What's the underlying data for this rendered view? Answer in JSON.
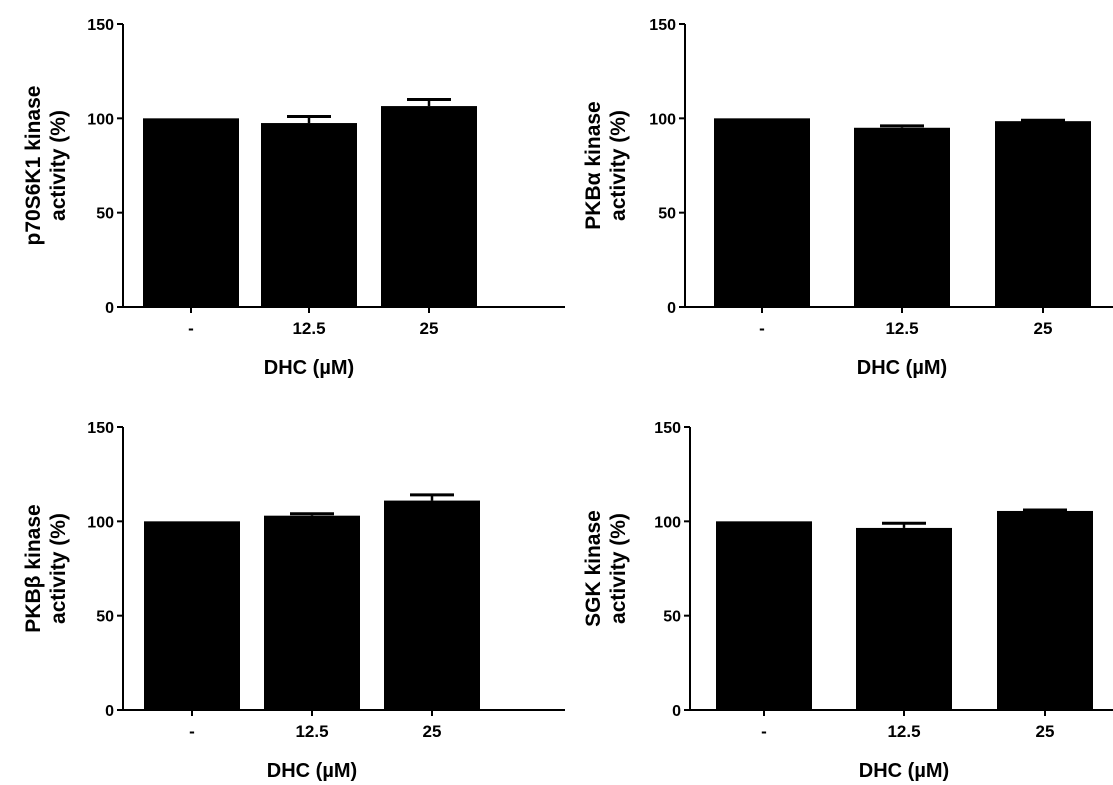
{
  "colors": {
    "bar": "#000000",
    "axis": "#000000",
    "background": "#ffffff"
  },
  "chart_data": [
    {
      "type": "bar",
      "title": "",
      "categories": [
        "-",
        "12.5",
        "25"
      ],
      "values": [
        100,
        97.5,
        106.5
      ],
      "errors": [
        0,
        3.5,
        3.5
      ],
      "xlabel": "DHC (µM)",
      "ylabel": [
        "p70S6K1 kinase",
        "activity (%)"
      ],
      "ylim": [
        0,
        150
      ],
      "yticks": [
        0,
        50,
        100,
        150
      ],
      "grid": false
    },
    {
      "type": "bar",
      "title": "",
      "categories": [
        "-",
        "12.5",
        "25"
      ],
      "values": [
        100,
        95,
        98.5
      ],
      "errors": [
        0,
        1,
        0.5
      ],
      "xlabel": "DHC (µM)",
      "ylabel": [
        "PKBα kinase",
        "activity (%)"
      ],
      "ylim": [
        0,
        150
      ],
      "yticks": [
        0,
        50,
        100,
        150
      ],
      "grid": false
    },
    {
      "type": "bar",
      "title": "",
      "categories": [
        "-",
        "12.5",
        "25"
      ],
      "values": [
        100,
        103,
        111
      ],
      "errors": [
        0,
        1,
        3
      ],
      "xlabel": "DHC (µM)",
      "ylabel": [
        "PKBβ kinase",
        "activity (%)"
      ],
      "ylim": [
        0,
        150
      ],
      "yticks": [
        0,
        50,
        100,
        150
      ],
      "grid": false
    },
    {
      "type": "bar",
      "title": "",
      "categories": [
        "-",
        "12.5",
        "25"
      ],
      "values": [
        100,
        96.5,
        105.5
      ],
      "errors": [
        0,
        2.5,
        0.5
      ],
      "xlabel": "DHC (µM)",
      "ylabel": [
        "SGK kinase",
        "activity (%)"
      ],
      "ylim": [
        0,
        150
      ],
      "yticks": [
        0,
        50,
        100,
        150
      ],
      "grid": false
    }
  ]
}
